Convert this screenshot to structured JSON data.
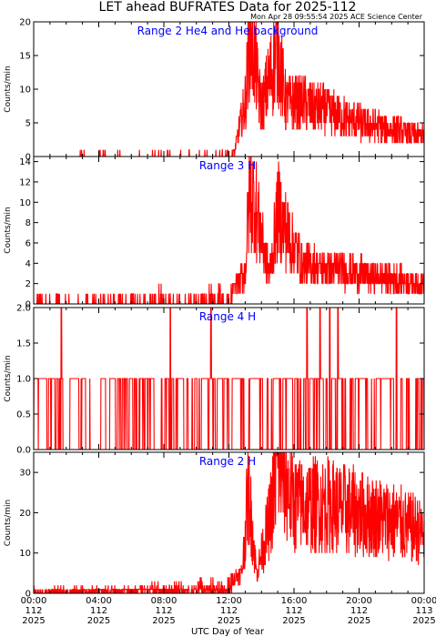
{
  "header": {
    "title": "LET ahead BUFRATES Data for 2025-112",
    "timestamp": "Mon Apr 28 09:55:54 2025 ACE Science Center"
  },
  "colors": {
    "trace": "#ff0000",
    "axes": "#000000",
    "panel_title": "#0000ff"
  },
  "x_axis": {
    "label": "UTC Day of Year",
    "ticks": [
      {
        "hours": 0,
        "time": "00:00",
        "day": "112",
        "year": "2025"
      },
      {
        "hours": 4,
        "time": "04:00",
        "day": "112",
        "year": "2025"
      },
      {
        "hours": 8,
        "time": "08:00",
        "day": "112",
        "year": "2025"
      },
      {
        "hours": 12,
        "time": "12:00",
        "day": "112",
        "year": "2025"
      },
      {
        "hours": 16,
        "time": "16:00",
        "day": "112",
        "year": "2025"
      },
      {
        "hours": 20,
        "time": "20:00",
        "day": "112",
        "year": "2025"
      },
      {
        "hours": 24,
        "time": "00:00",
        "day": "113",
        "year": "2025"
      }
    ],
    "range_hours": [
      0,
      24
    ]
  },
  "chart_data": [
    {
      "type": "line",
      "title": "Range 2 He4 and He background",
      "ylabel": "Counts/min",
      "ylim": [
        0,
        20
      ],
      "yticks": [
        0,
        5,
        10,
        15,
        20
      ],
      "series": [
        {
          "x": [
            0,
            12.3,
            13.0,
            13.3,
            14.0,
            15.0,
            15.5,
            16.5,
            20.0,
            24.0
          ],
          "y": [
            0,
            0.4,
            8,
            19,
            7,
            16,
            8,
            8,
            5,
            3
          ]
        }
      ]
    },
    {
      "type": "line",
      "title": "Range 3 H",
      "ylabel": "Counts/min",
      "ylim": [
        0,
        14.5
      ],
      "yticks": [
        0,
        2,
        4,
        6,
        8,
        10,
        12,
        14
      ],
      "series": [
        {
          "x": [
            0,
            12.0,
            13.0,
            13.3,
            14.5,
            15.0,
            16.5,
            20.0,
            24.0
          ],
          "y": [
            0.4,
            1,
            3,
            12,
            3,
            9,
            4,
            3,
            2
          ]
        }
      ]
    },
    {
      "type": "line",
      "title": "Range 4 H",
      "ylabel": "Counts/min",
      "ylim": [
        0,
        2
      ],
      "yticks": [
        0.0,
        0.5,
        1.0,
        1.5,
        2.0
      ],
      "series": [
        {
          "x": [
            0,
            24
          ],
          "y": [
            0,
            0
          ],
          "levels": [
            0,
            1,
            2
          ],
          "spikes_to_2_hours": [
            1.7,
            8.4,
            10.9,
            16.8,
            17.6,
            18.2,
            18.7,
            22.3
          ]
        }
      ]
    },
    {
      "type": "line",
      "title": "Range 2 H",
      "ylabel": "Counts/min",
      "ylim": [
        0,
        35
      ],
      "yticks": [
        0,
        10,
        20,
        30
      ],
      "series": [
        {
          "x": [
            0,
            8.0,
            12.0,
            12.8,
            13.2,
            13.7,
            14.5,
            15.0,
            16.0,
            18.0,
            20.0,
            22.0,
            24.0
          ],
          "y": [
            1,
            2,
            3,
            5,
            26,
            5,
            18,
            33,
            22,
            22,
            20,
            18,
            15
          ]
        }
      ]
    }
  ]
}
